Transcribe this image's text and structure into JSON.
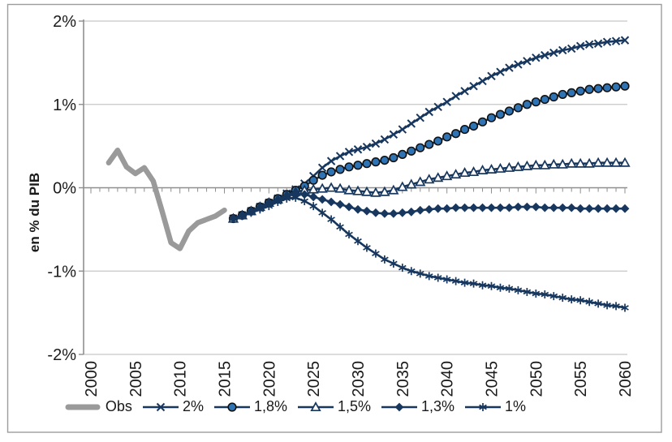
{
  "chart_data": {
    "type": "line",
    "title": "",
    "ylabel": "en % du PIB",
    "ylim": [
      -2,
      2
    ],
    "ytick_values": [
      2,
      1,
      0,
      -1,
      -2
    ],
    "ytick_labels": [
      "2%",
      "1%",
      "0%",
      "-1%",
      "-2%"
    ],
    "xlim": [
      2000,
      2060
    ],
    "xticks": [
      2000,
      2005,
      2010,
      2015,
      2020,
      2025,
      2030,
      2035,
      2040,
      2045,
      2050,
      2055,
      2060
    ],
    "grid": "horizontal",
    "legend_position": "bottom",
    "colors": {
      "navy": "#17375e",
      "circle_fill": "#2e74b5",
      "obs_gray": "#9a9a9a",
      "gridline": "#c6c6c6",
      "axis": "#8f8f8f",
      "text": "#1a1a1a",
      "frame": "#9c9c9c"
    },
    "series": [
      {
        "key": "obs",
        "name": "Obs",
        "marker": "none",
        "start_year": 2002,
        "values": [
          0.3,
          0.45,
          0.25,
          0.17,
          0.24,
          0.08,
          -0.28,
          -0.66,
          -0.73,
          -0.52,
          -0.42,
          -0.38,
          -0.34,
          -0.27
        ]
      },
      {
        "key": "2pct",
        "name": "2%",
        "marker": "x",
        "start_year": 2016,
        "values": [
          -0.37,
          -0.33,
          -0.28,
          -0.23,
          -0.18,
          -0.13,
          -0.07,
          -0.02,
          0.05,
          0.14,
          0.24,
          0.32,
          0.38,
          0.43,
          0.46,
          0.49,
          0.53,
          0.58,
          0.64,
          0.7,
          0.77,
          0.84,
          0.91,
          0.97,
          1.03,
          1.1,
          1.16,
          1.22,
          1.28,
          1.34,
          1.39,
          1.44,
          1.48,
          1.52,
          1.56,
          1.59,
          1.62,
          1.65,
          1.67,
          1.7,
          1.72,
          1.73,
          1.75,
          1.76,
          1.77
        ]
      },
      {
        "key": "1-8pct",
        "name": "1,8%",
        "marker": "circle",
        "start_year": 2016,
        "values": [
          -0.37,
          -0.33,
          -0.28,
          -0.23,
          -0.18,
          -0.13,
          -0.08,
          -0.03,
          0.02,
          0.09,
          0.15,
          0.19,
          0.22,
          0.25,
          0.27,
          0.29,
          0.31,
          0.33,
          0.36,
          0.4,
          0.44,
          0.48,
          0.52,
          0.56,
          0.61,
          0.65,
          0.7,
          0.74,
          0.79,
          0.84,
          0.88,
          0.92,
          0.96,
          1.0,
          1.03,
          1.06,
          1.09,
          1.12,
          1.14,
          1.16,
          1.18,
          1.19,
          1.2,
          1.21,
          1.22
        ]
      },
      {
        "key": "1-5pct",
        "name": "1,5%",
        "marker": "triangle-open",
        "start_year": 2016,
        "values": [
          -0.37,
          -0.33,
          -0.28,
          -0.23,
          -0.18,
          -0.14,
          -0.09,
          -0.05,
          -0.03,
          -0.02,
          -0.01,
          0.0,
          -0.01,
          -0.03,
          -0.04,
          -0.05,
          -0.06,
          -0.05,
          -0.03,
          0.01,
          0.04,
          0.07,
          0.1,
          0.12,
          0.14,
          0.16,
          0.18,
          0.19,
          0.21,
          0.22,
          0.23,
          0.24,
          0.25,
          0.26,
          0.27,
          0.27,
          0.28,
          0.28,
          0.29,
          0.29,
          0.29,
          0.3,
          0.3,
          0.3,
          0.3
        ]
      },
      {
        "key": "1-3pct",
        "name": "1,3%",
        "marker": "diamond",
        "start_year": 2016,
        "values": [
          -0.37,
          -0.33,
          -0.29,
          -0.24,
          -0.19,
          -0.15,
          -0.1,
          -0.07,
          -0.08,
          -0.11,
          -0.14,
          -0.17,
          -0.2,
          -0.23,
          -0.26,
          -0.28,
          -0.3,
          -0.31,
          -0.31,
          -0.3,
          -0.29,
          -0.27,
          -0.26,
          -0.25,
          -0.25,
          -0.24,
          -0.24,
          -0.24,
          -0.24,
          -0.24,
          -0.24,
          -0.24,
          -0.23,
          -0.23,
          -0.23,
          -0.24,
          -0.24,
          -0.24,
          -0.24,
          -0.25,
          -0.25,
          -0.25,
          -0.25,
          -0.25,
          -0.25
        ]
      },
      {
        "key": "1pct",
        "name": "1%",
        "marker": "asterisk",
        "start_year": 2016,
        "values": [
          -0.37,
          -0.34,
          -0.3,
          -0.26,
          -0.22,
          -0.17,
          -0.13,
          -0.12,
          -0.16,
          -0.22,
          -0.3,
          -0.38,
          -0.47,
          -0.56,
          -0.64,
          -0.72,
          -0.79,
          -0.86,
          -0.91,
          -0.96,
          -1.0,
          -1.03,
          -1.06,
          -1.08,
          -1.1,
          -1.12,
          -1.14,
          -1.15,
          -1.17,
          -1.18,
          -1.2,
          -1.21,
          -1.23,
          -1.25,
          -1.27,
          -1.28,
          -1.3,
          -1.32,
          -1.34,
          -1.35,
          -1.37,
          -1.39,
          -1.41,
          -1.42,
          -1.44
        ]
      }
    ]
  }
}
